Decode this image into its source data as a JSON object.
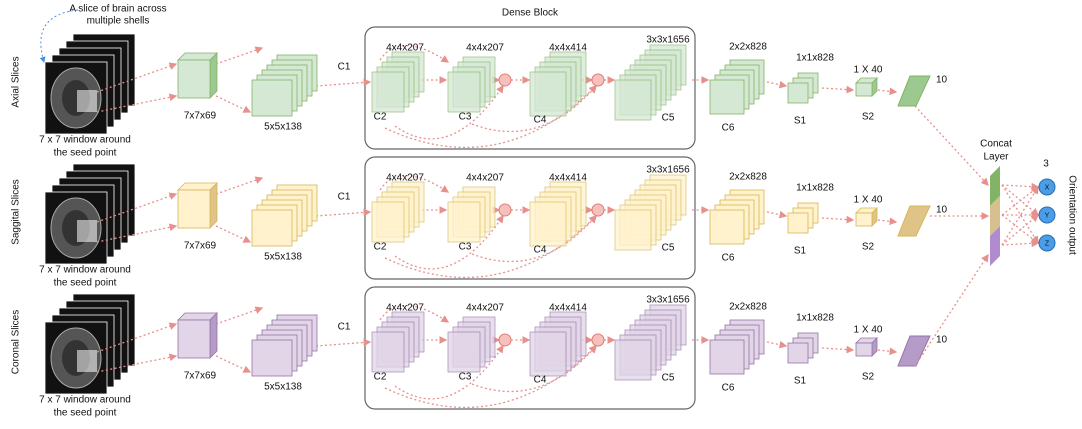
{
  "annotation": [
    "A slice of brain across",
    "multiple shells"
  ],
  "dense_block_title": "Dense Block",
  "streams": [
    {
      "label": "Axial Slices",
      "caption": [
        "7 x 7 window around",
        "the seed point"
      ],
      "layers": [
        {
          "dims": "7x7x69"
        },
        {
          "name": "C1",
          "dims": "5x5x138"
        },
        {
          "name": "C2",
          "dims": "4x4x207"
        },
        {
          "name": "C3",
          "dims": "4x4x207"
        },
        {
          "name": "C4",
          "dims": "4x4x414"
        },
        {
          "name": "C5",
          "dims": "3x3x1656"
        },
        {
          "name": "C6",
          "dims": "2x2x828"
        },
        {
          "name": "S1",
          "dims": "1x1x828"
        },
        {
          "name": "S2",
          "dims": "1 X 40"
        },
        {
          "dims": "10"
        }
      ]
    },
    {
      "label": "Saggital Slices",
      "caption": [
        "7 x 7 window around",
        "the seed point"
      ],
      "layers": [
        {
          "dims": "7x7x69"
        },
        {
          "name": "C1",
          "dims": "5x5x138"
        },
        {
          "name": "C2",
          "dims": "4x4x207"
        },
        {
          "name": "C3",
          "dims": "4x4x207"
        },
        {
          "name": "C4",
          "dims": "4x4x414"
        },
        {
          "name": "C5",
          "dims": "3x3x1656"
        },
        {
          "name": "C6",
          "dims": "2x2x828"
        },
        {
          "name": "S1",
          "dims": "1x1x828"
        },
        {
          "name": "S2",
          "dims": "1 X 40"
        },
        {
          "dims": "10"
        }
      ]
    },
    {
      "label": "Coronal Slices",
      "caption": [
        "7 x 7 window around",
        "the seed point"
      ],
      "layers": [
        {
          "dims": "7x7x69"
        },
        {
          "name": "C1",
          "dims": "5x5x138"
        },
        {
          "name": "C2",
          "dims": "4x4x207"
        },
        {
          "name": "C3",
          "dims": "4x4x207"
        },
        {
          "name": "C4",
          "dims": "4x4x414"
        },
        {
          "name": "C5",
          "dims": "3x3x1656"
        },
        {
          "name": "C6",
          "dims": "2x2x828"
        },
        {
          "name": "S1",
          "dims": "1x1x828"
        },
        {
          "name": "S2",
          "dims": "1 X 40"
        },
        {
          "dims": "10"
        }
      ]
    }
  ],
  "concat_layer": [
    "Concat",
    "Layer"
  ],
  "output": {
    "size": "3",
    "nodes": [
      "X",
      "Y",
      "Z"
    ],
    "label": "Orientation output"
  }
}
